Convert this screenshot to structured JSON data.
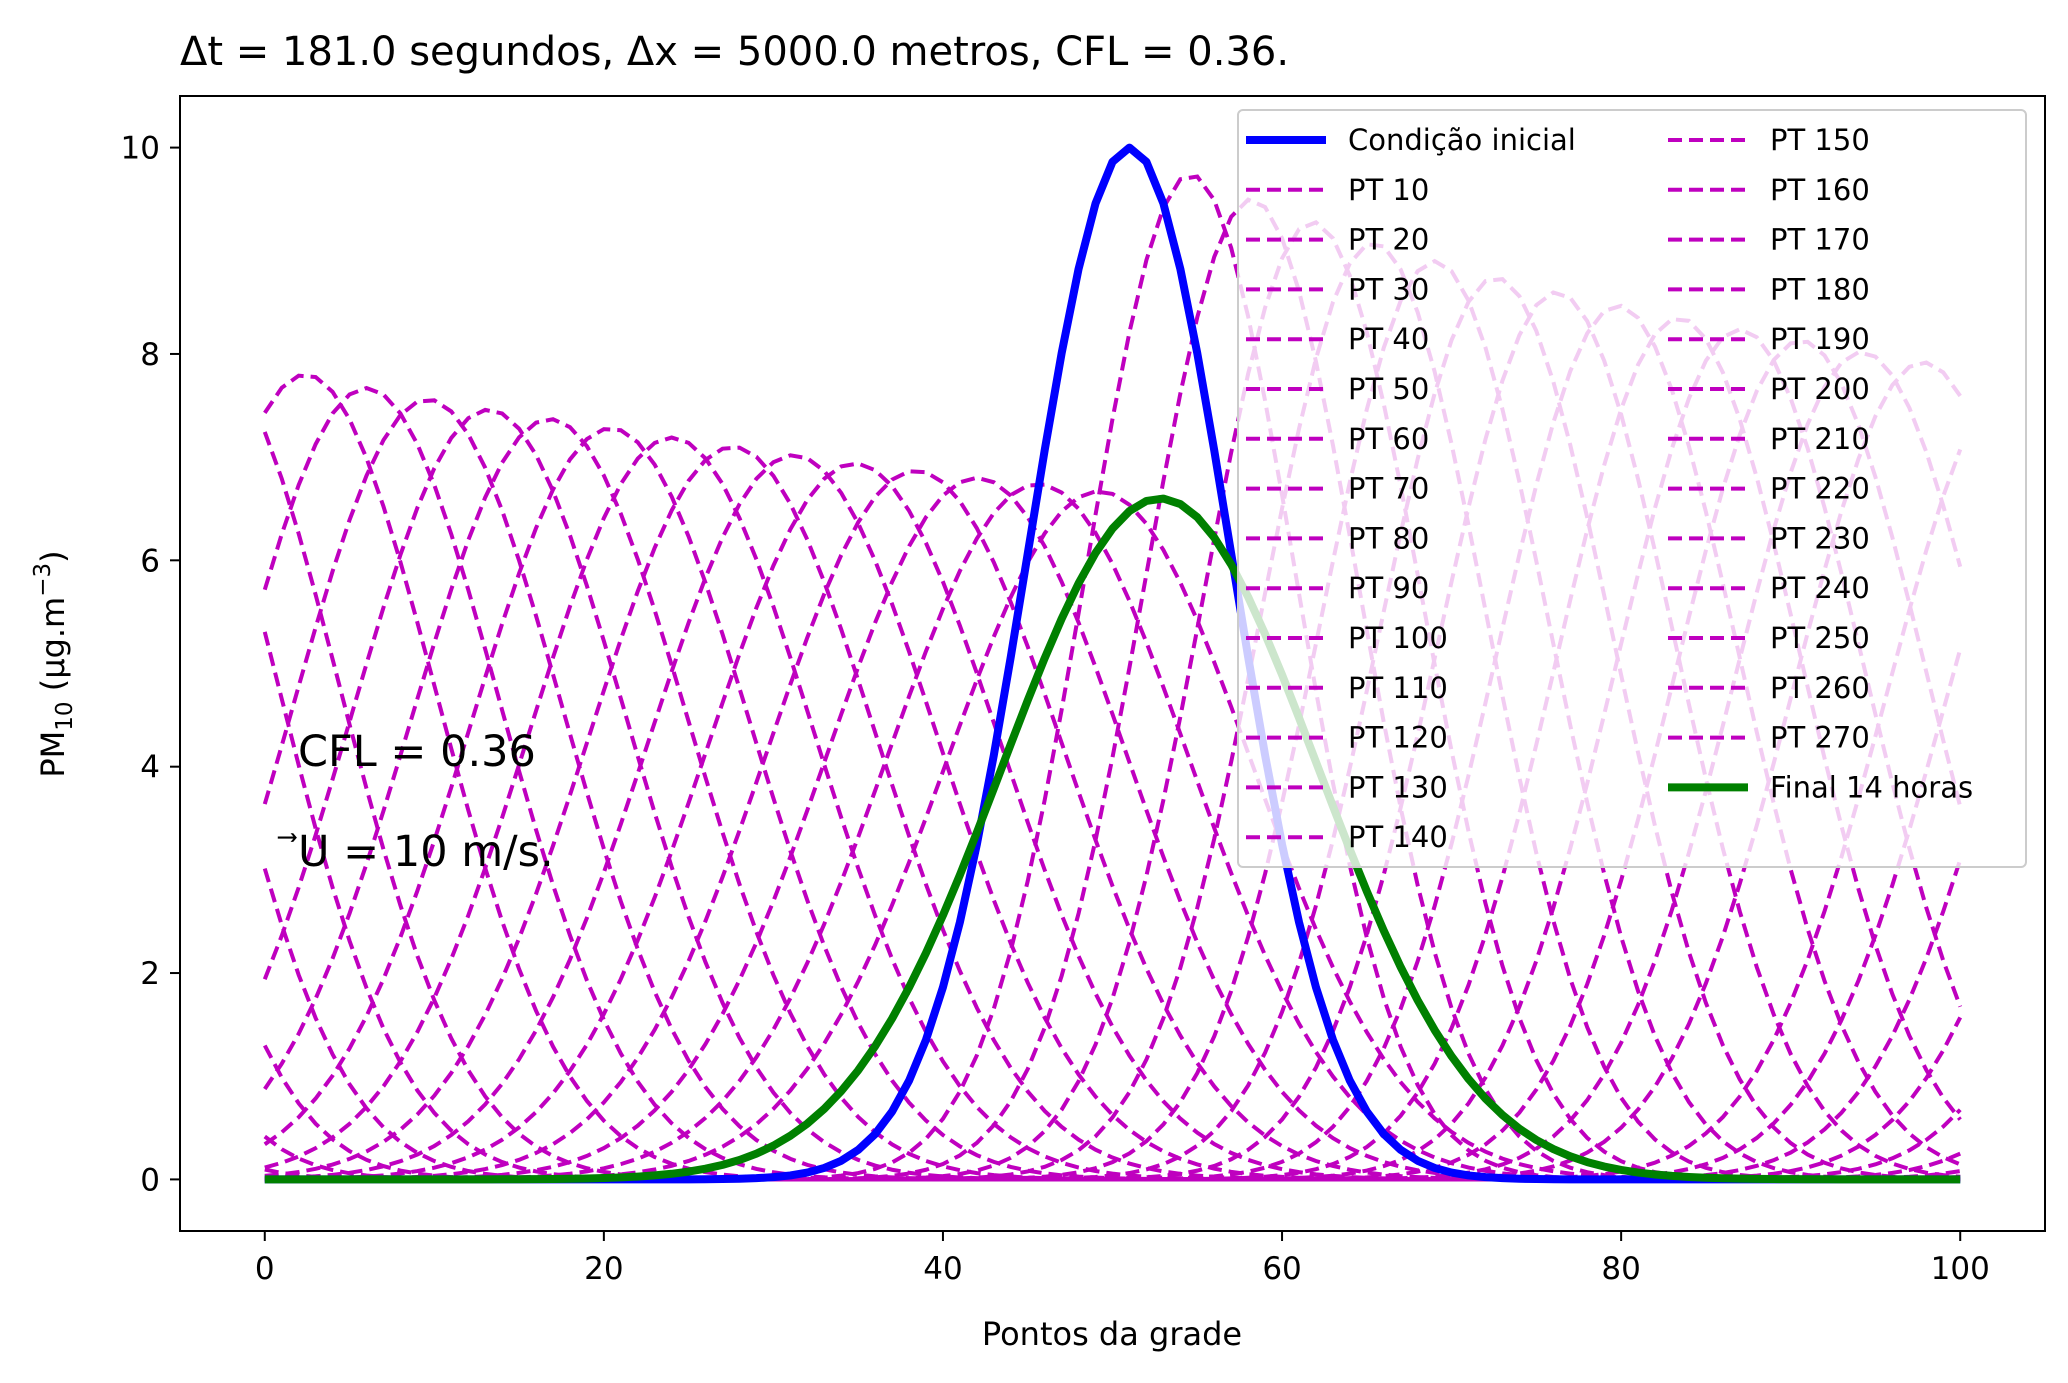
{
  "chart_data": {
    "type": "line",
    "title": "Δt = 181.0 segundos, Δx = 5000.0 metros, CFL = 0.36.",
    "xlabel": "Pontos da grade",
    "ylabel": "PM",
    "ylabel_sub": "10",
    "ylabel_rest": " (μg.m",
    "ylabel_sup": "−3",
    "ylabel_end": ")",
    "xlim": [
      -5,
      105
    ],
    "ylim": [
      -0.5,
      10.5
    ],
    "xticks": [
      0,
      20,
      40,
      60,
      80,
      100
    ],
    "yticks": [
      0,
      2,
      4,
      6,
      8,
      10
    ],
    "grid": false,
    "legend": "top-right",
    "annotation_cfl": "CFL = 0.36",
    "annotation_u": "U = 10 m/s.",
    "annotation_u_symbol": "⃗",
    "initial": {
      "name": "Condição inicial",
      "color": "#0000ff",
      "center": 51,
      "sigma": 6,
      "amplitude": 10
    },
    "final": {
      "name": "Final 14 horas",
      "color": "#008000",
      "center": 52.8,
      "sigma": 9.3,
      "amplitude": 6.6
    },
    "intermediate_color": "#bf00bf",
    "series": [
      {
        "name": "PT 10",
        "center": 54.6,
        "amplitude": 9.74
      },
      {
        "name": "PT 20",
        "center": 58.2,
        "amplitude": 9.5
      },
      {
        "name": "PT 30",
        "center": 61.8,
        "amplitude": 9.28
      },
      {
        "name": "PT 40",
        "center": 65.4,
        "amplitude": 9.08
      },
      {
        "name": "PT 50",
        "center": 69.0,
        "amplitude": 8.9
      },
      {
        "name": "PT 60",
        "center": 72.6,
        "amplitude": 8.74
      },
      {
        "name": "PT 70",
        "center": 76.2,
        "amplitude": 8.6
      },
      {
        "name": "PT 80",
        "center": 79.8,
        "amplitude": 8.47
      },
      {
        "name": "PT 90",
        "center": 83.4,
        "amplitude": 8.35
      },
      {
        "name": "PT 100",
        "center": 87.0,
        "amplitude": 8.24
      },
      {
        "name": "PT 110",
        "center": 90.6,
        "amplitude": 8.13
      },
      {
        "name": "PT 120",
        "center": 94.2,
        "amplitude": 8.02
      },
      {
        "name": "PT 130",
        "center": 97.8,
        "amplitude": 7.92
      },
      {
        "name": "PT 140",
        "center": 2.4,
        "amplitude": 7.8
      },
      {
        "name": "PT 150",
        "center": 6.0,
        "amplitude": 7.67
      },
      {
        "name": "PT 160",
        "center": 9.6,
        "amplitude": 7.56
      },
      {
        "name": "PT 170",
        "center": 13.2,
        "amplitude": 7.46
      },
      {
        "name": "PT 180",
        "center": 16.8,
        "amplitude": 7.37
      },
      {
        "name": "PT 190",
        "center": 20.4,
        "amplitude": 7.28
      },
      {
        "name": "PT 200",
        "center": 24.0,
        "amplitude": 7.19
      },
      {
        "name": "PT 210",
        "center": 27.6,
        "amplitude": 7.1
      },
      {
        "name": "PT 220",
        "center": 31.2,
        "amplitude": 7.02
      },
      {
        "name": "PT 230",
        "center": 34.8,
        "amplitude": 6.94
      },
      {
        "name": "PT 240",
        "center": 38.4,
        "amplitude": 6.87
      },
      {
        "name": "PT 250",
        "center": 42.0,
        "amplitude": 6.8
      },
      {
        "name": "PT 260",
        "center": 45.6,
        "amplitude": 6.74
      },
      {
        "name": "PT 270",
        "center": 49.2,
        "amplitude": 6.67
      }
    ]
  }
}
